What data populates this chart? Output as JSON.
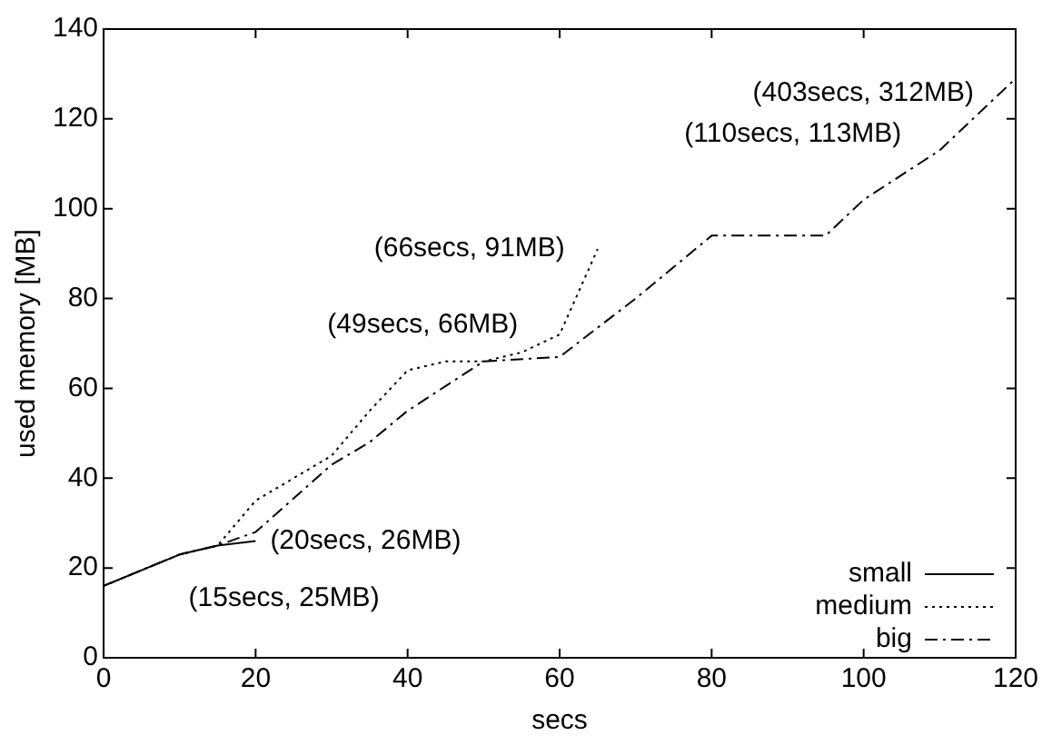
{
  "chart_data": {
    "type": "line",
    "xlabel": "secs",
    "ylabel": "used memory [MB]",
    "xlim": [
      0,
      120
    ],
    "xticks": [
      0,
      20,
      40,
      60,
      80,
      100,
      120
    ],
    "ylim": [
      0,
      140
    ],
    "yticks": [
      0,
      20,
      40,
      60,
      80,
      100,
      120,
      140
    ],
    "grid": false,
    "legend": "bottom right",
    "series": [
      {
        "name": "small",
        "color": "#000000",
        "line_style": "solid",
        "x": [
          0,
          5,
          10,
          15,
          20
        ],
        "values": [
          16,
          19.5,
          23,
          25,
          26
        ]
      },
      {
        "name": "medium",
        "color": "#000000",
        "line_style": "dotted",
        "x": [
          0,
          10,
          15,
          20,
          25,
          30,
          35,
          40,
          45,
          50,
          55,
          60,
          65
        ],
        "values": [
          16,
          23,
          25,
          35,
          40,
          45,
          55,
          64,
          66,
          66,
          68,
          72,
          91
        ]
      },
      {
        "name": "big",
        "color": "#000000",
        "line_style": "dashed",
        "x": [
          0,
          10,
          15,
          20,
          30,
          35,
          40,
          50,
          60,
          70,
          80,
          90,
          95,
          100,
          110,
          120
        ],
        "values": [
          16,
          23,
          25,
          28,
          43,
          48,
          55,
          66,
          67,
          80,
          94,
          94,
          94,
          102,
          113,
          129
        ]
      }
    ],
    "annotations": [
      {
        "text": "(20secs, 26MB)",
        "x": 20,
        "y": 26
      },
      {
        "text": "(15secs, 25MB)",
        "x": 15,
        "y": 25
      },
      {
        "text": "(66secs, 91MB)",
        "x": 65,
        "y": 91
      },
      {
        "text": "(49secs, 66MB)",
        "x": 50,
        "y": 66
      },
      {
        "text": "(403secs, 312MB)",
        "x": 120,
        "y": 129
      },
      {
        "text": "(110secs, 113MB)",
        "x": 110,
        "y": 113
      }
    ]
  }
}
